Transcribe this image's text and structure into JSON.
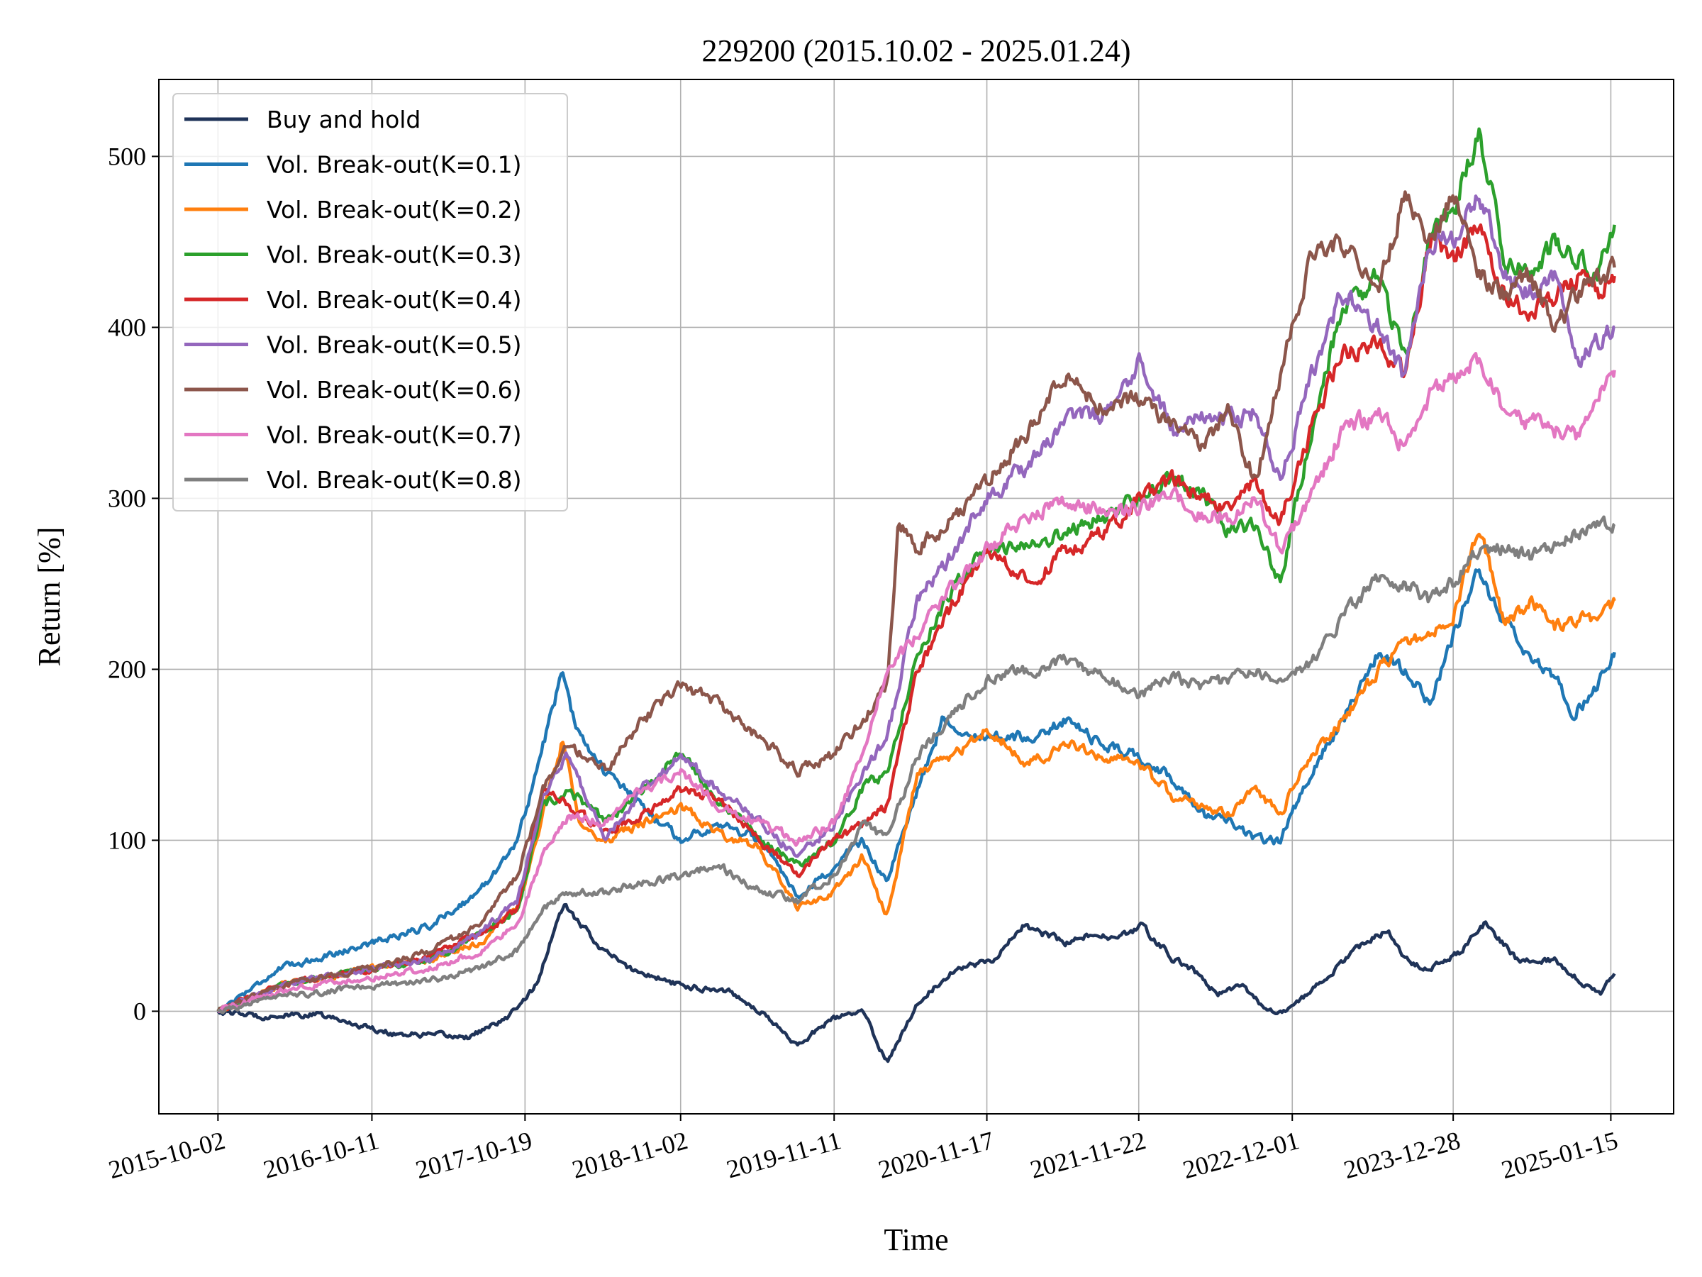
{
  "chart_data": {
    "type": "line",
    "title": "229200 (2015.10.02 - 2025.01.24)",
    "xlabel": "Time",
    "ylabel": "Return [%]",
    "x_start": "2015-10-02",
    "x_end": "2025-01-24",
    "xlim": [
      "2015-05-11",
      "2025-06-17"
    ],
    "ylim": [
      -60,
      545
    ],
    "x_ticks": [
      "2015-10-02",
      "2016-10-11",
      "2017-10-19",
      "2018-11-02",
      "2019-11-11",
      "2020-11-17",
      "2021-11-22",
      "2022-12-01",
      "2023-12-28",
      "2025-01-15"
    ],
    "y_ticks": [
      0,
      100,
      200,
      300,
      400,
      500
    ],
    "grid": true,
    "legend_position": "upper-left",
    "series": [
      {
        "name": "Buy and hold",
        "color": "#1f3358",
        "x": [
          "2015-10-02",
          "2016-01-15",
          "2016-06-01",
          "2016-12-01",
          "2017-06-01",
          "2017-09-01",
          "2017-11-15",
          "2018-01-20",
          "2018-05-01",
          "2018-07-01",
          "2018-11-02",
          "2019-03-01",
          "2019-05-15",
          "2019-08-15",
          "2019-11-01",
          "2020-01-20",
          "2020-03-19",
          "2020-06-01",
          "2020-09-01",
          "2020-12-01",
          "2021-02-15",
          "2021-06-01",
          "2021-08-01",
          "2021-10-01",
          "2021-12-01",
          "2022-02-15",
          "2022-04-01",
          "2022-06-01",
          "2022-08-01",
          "2022-10-01",
          "2022-11-15",
          "2023-02-01",
          "2023-05-01",
          "2023-07-20",
          "2023-09-01",
          "2023-11-01",
          "2024-01-15",
          "2024-03-15",
          "2024-06-01",
          "2024-09-01",
          "2024-11-15",
          "2024-12-20",
          "2025-01-24"
        ],
        "y": [
          0,
          -3,
          -2,
          -13,
          -15,
          -5,
          15,
          62,
          35,
          25,
          15,
          12,
          0,
          -20,
          -5,
          0,
          -30,
          5,
          25,
          30,
          50,
          40,
          45,
          42,
          50,
          30,
          25,
          10,
          15,
          0,
          0,
          15,
          35,
          48,
          30,
          25,
          35,
          52,
          30,
          30,
          15,
          10,
          22
        ]
      },
      {
        "name": "Vol. Break-out(K=0.1)",
        "color": "#1f77b4",
        "x": [
          "2015-10-02",
          "2016-03-01",
          "2016-10-11",
          "2017-03-01",
          "2017-07-01",
          "2017-10-01",
          "2017-11-15",
          "2018-01-20",
          "2018-02-15",
          "2018-05-01",
          "2018-08-01",
          "2018-11-02",
          "2019-02-01",
          "2019-05-15",
          "2019-08-15",
          "2019-11-11",
          "2020-01-20",
          "2020-03-19",
          "2020-06-01",
          "2020-08-01",
          "2020-11-17",
          "2021-03-01",
          "2021-06-01",
          "2021-09-01",
          "2021-11-22",
          "2022-02-15",
          "2022-05-01",
          "2022-07-01",
          "2022-09-01",
          "2022-11-01",
          "2023-01-15",
          "2023-04-01",
          "2023-07-01",
          "2023-09-01",
          "2023-11-01",
          "2023-12-28",
          "2024-03-01",
          "2024-04-01",
          "2024-06-15",
          "2024-09-01",
          "2024-10-15",
          "2024-12-01",
          "2025-01-24"
        ],
        "y": [
          0,
          25,
          40,
          50,
          70,
          100,
          140,
          200,
          170,
          140,
          120,
          100,
          110,
          100,
          65,
          85,
          100,
          75,
          130,
          170,
          160,
          160,
          170,
          155,
          150,
          135,
          115,
          110,
          100,
          100,
          140,
          170,
          210,
          200,
          180,
          220,
          260,
          240,
          210,
          195,
          175,
          185,
          210
        ]
      },
      {
        "name": "Vol. Break-out(K=0.2)",
        "color": "#ff7f0e",
        "x": [
          "2015-10-02",
          "2016-03-01",
          "2016-10-11",
          "2017-03-01",
          "2017-07-01",
          "2017-10-01",
          "2017-11-15",
          "2018-01-20",
          "2018-03-01",
          "2018-05-01",
          "2018-08-01",
          "2018-11-02",
          "2019-02-01",
          "2019-05-15",
          "2019-08-15",
          "2019-11-11",
          "2020-01-20",
          "2020-03-19",
          "2020-06-01",
          "2020-09-01",
          "2020-11-17",
          "2021-03-01",
          "2021-06-01",
          "2021-09-01",
          "2021-11-22",
          "2022-02-15",
          "2022-05-01",
          "2022-07-01",
          "2022-09-01",
          "2022-11-01",
          "2023-01-15",
          "2023-04-01",
          "2023-07-01",
          "2023-09-01",
          "2023-11-01",
          "2023-12-28",
          "2024-03-01",
          "2024-05-01",
          "2024-07-01",
          "2024-09-01",
          "2024-11-01",
          "2024-12-15",
          "2025-01-24"
        ],
        "y": [
          0,
          15,
          25,
          30,
          40,
          60,
          100,
          160,
          110,
          100,
          110,
          120,
          105,
          95,
          60,
          70,
          90,
          55,
          140,
          150,
          165,
          145,
          155,
          150,
          145,
          125,
          120,
          115,
          130,
          115,
          150,
          170,
          200,
          215,
          220,
          230,
          285,
          225,
          240,
          225,
          230,
          225,
          240
        ]
      },
      {
        "name": "Vol. Break-out(K=0.3)",
        "color": "#2ca02c",
        "x": [
          "2015-10-02",
          "2016-03-01",
          "2016-10-11",
          "2017-03-01",
          "2017-07-01",
          "2017-10-01",
          "2017-12-01",
          "2018-02-01",
          "2018-05-01",
          "2018-08-01",
          "2018-11-02",
          "2019-02-01",
          "2019-05-15",
          "2019-08-15",
          "2019-11-11",
          "2020-01-20",
          "2020-03-19",
          "2020-06-01",
          "2020-09-01",
          "2020-11-17",
          "2021-03-01",
          "2021-06-01",
          "2021-09-01",
          "2021-11-22",
          "2022-02-15",
          "2022-05-01",
          "2022-07-01",
          "2022-09-01",
          "2022-11-01",
          "2023-01-15",
          "2023-04-01",
          "2023-07-01",
          "2023-09-01",
          "2023-11-01",
          "2023-12-28",
          "2024-03-01",
          "2024-05-01",
          "2024-07-01",
          "2024-09-01",
          "2024-11-01",
          "2024-12-15",
          "2025-01-24"
        ],
        "y": [
          0,
          15,
          25,
          30,
          45,
          60,
          120,
          130,
          110,
          130,
          150,
          125,
          100,
          85,
          100,
          130,
          140,
          210,
          250,
          270,
          270,
          280,
          290,
          300,
          310,
          300,
          280,
          285,
          250,
          340,
          410,
          430,
          380,
          450,
          470,
          515,
          440,
          430,
          450,
          440,
          430,
          460
        ]
      },
      {
        "name": "Vol. Break-out(K=0.4)",
        "color": "#d62728",
        "x": [
          "2015-10-02",
          "2016-03-01",
          "2016-10-11",
          "2017-03-01",
          "2017-07-01",
          "2017-10-01",
          "2017-12-01",
          "2018-02-01",
          "2018-05-01",
          "2018-08-01",
          "2018-11-02",
          "2019-02-01",
          "2019-05-15",
          "2019-08-15",
          "2019-11-11",
          "2020-01-20",
          "2020-03-19",
          "2020-06-01",
          "2020-09-01",
          "2020-11-17",
          "2021-03-01",
          "2021-06-01",
          "2021-09-01",
          "2021-11-22",
          "2022-02-15",
          "2022-05-01",
          "2022-07-01",
          "2022-09-01",
          "2022-11-01",
          "2023-01-15",
          "2023-04-01",
          "2023-07-01",
          "2023-09-01",
          "2023-11-01",
          "2023-12-28",
          "2024-03-01",
          "2024-05-01",
          "2024-07-01",
          "2024-09-01",
          "2024-11-01",
          "2024-12-15",
          "2025-01-24"
        ],
        "y": [
          0,
          15,
          25,
          32,
          45,
          60,
          130,
          120,
          105,
          115,
          130,
          125,
          100,
          80,
          100,
          110,
          120,
          200,
          240,
          270,
          250,
          270,
          280,
          300,
          310,
          300,
          290,
          310,
          285,
          340,
          385,
          390,
          370,
          450,
          440,
          460,
          420,
          410,
          420,
          430,
          420,
          430
        ]
      },
      {
        "name": "Vol. Break-out(K=0.5)",
        "color": "#9467bd",
        "x": [
          "2015-10-02",
          "2016-03-01",
          "2016-10-11",
          "2017-03-01",
          "2017-07-01",
          "2017-10-01",
          "2017-12-01",
          "2018-02-01",
          "2018-05-01",
          "2018-08-01",
          "2018-11-02",
          "2019-02-01",
          "2019-05-15",
          "2019-08-15",
          "2019-11-11",
          "2020-01-20",
          "2020-03-19",
          "2020-06-01",
          "2020-09-01",
          "2020-11-17",
          "2021-03-01",
          "2021-06-01",
          "2021-09-01",
          "2021-11-22",
          "2022-02-15",
          "2022-05-01",
          "2022-07-01",
          "2022-09-01",
          "2022-11-01",
          "2023-01-15",
          "2023-04-01",
          "2023-07-01",
          "2023-09-01",
          "2023-11-01",
          "2023-12-28",
          "2024-03-01",
          "2024-05-01",
          "2024-07-01",
          "2024-09-01",
          "2024-11-01",
          "2024-12-15",
          "2025-01-24"
        ],
        "y": [
          0,
          15,
          25,
          30,
          45,
          65,
          125,
          150,
          100,
          130,
          150,
          130,
          110,
          90,
          110,
          140,
          160,
          240,
          270,
          300,
          320,
          345,
          350,
          380,
          340,
          350,
          345,
          350,
          310,
          370,
          420,
          400,
          370,
          450,
          450,
          480,
          430,
          420,
          430,
          380,
          390,
          400
        ]
      },
      {
        "name": "Vol. Break-out(K=0.6)",
        "color": "#8c564b",
        "x": [
          "2015-10-02",
          "2016-03-01",
          "2016-10-11",
          "2017-03-01",
          "2017-07-01",
          "2017-10-01",
          "2017-12-01",
          "2018-02-01",
          "2018-05-01",
          "2018-08-01",
          "2018-11-02",
          "2019-02-01",
          "2019-05-15",
          "2019-08-15",
          "2019-11-11",
          "2020-01-20",
          "2020-03-19",
          "2020-04-15",
          "2020-06-01",
          "2020-09-01",
          "2020-11-17",
          "2021-03-01",
          "2021-06-01",
          "2021-09-01",
          "2021-11-22",
          "2022-02-15",
          "2022-05-01",
          "2022-07-01",
          "2022-09-01",
          "2022-11-01",
          "2023-01-15",
          "2023-04-01",
          "2023-07-01",
          "2023-09-01",
          "2023-11-01",
          "2023-12-28",
          "2024-03-01",
          "2024-05-01",
          "2024-07-01",
          "2024-09-01",
          "2024-11-01",
          "2024-12-15",
          "2025-01-24"
        ],
        "y": [
          0,
          15,
          25,
          35,
          50,
          80,
          130,
          155,
          140,
          170,
          190,
          180,
          160,
          140,
          150,
          170,
          190,
          285,
          270,
          290,
          310,
          340,
          375,
          350,
          360,
          340,
          330,
          350,
          310,
          370,
          440,
          450,
          420,
          480,
          450,
          480,
          430,
          420,
          430,
          400,
          420,
          430,
          435
        ]
      },
      {
        "name": "Vol. Break-out(K=0.7)",
        "color": "#e377c2",
        "x": [
          "2015-10-02",
          "2016-03-01",
          "2016-10-11",
          "2017-03-01",
          "2017-07-01",
          "2017-10-01",
          "2017-12-01",
          "2018-02-01",
          "2018-05-01",
          "2018-08-01",
          "2018-11-02",
          "2019-02-01",
          "2019-05-15",
          "2019-08-15",
          "2019-11-11",
          "2020-01-20",
          "2020-03-19",
          "2020-06-01",
          "2020-09-01",
          "2020-11-17",
          "2021-03-01",
          "2021-06-01",
          "2021-09-01",
          "2021-11-22",
          "2022-02-15",
          "2022-05-01",
          "2022-07-01",
          "2022-09-01",
          "2022-11-01",
          "2023-01-15",
          "2023-04-01",
          "2023-07-01",
          "2023-09-01",
          "2023-11-01",
          "2023-12-28",
          "2024-03-01",
          "2024-05-01",
          "2024-07-01",
          "2024-09-01",
          "2024-11-01",
          "2024-12-15",
          "2025-01-24"
        ],
        "y": [
          0,
          12,
          20,
          25,
          35,
          50,
          90,
          115,
          110,
          130,
          140,
          120,
          110,
          100,
          110,
          150,
          200,
          220,
          250,
          270,
          290,
          300,
          290,
          295,
          300,
          290,
          290,
          300,
          270,
          300,
          340,
          350,
          330,
          360,
          370,
          380,
          350,
          345,
          340,
          335,
          360,
          375
        ]
      },
      {
        "name": "Vol. Break-out(K=0.8)",
        "color": "#7f7f7f",
        "x": [
          "2015-10-02",
          "2016-03-01",
          "2016-10-11",
          "2017-03-01",
          "2017-07-01",
          "2017-10-01",
          "2017-12-01",
          "2018-02-01",
          "2018-05-01",
          "2018-08-01",
          "2018-11-02",
          "2019-02-01",
          "2019-05-15",
          "2019-08-15",
          "2019-11-11",
          "2020-01-20",
          "2020-03-19",
          "2020-06-01",
          "2020-09-01",
          "2020-11-17",
          "2021-03-01",
          "2021-06-01",
          "2021-09-01",
          "2021-11-22",
          "2022-02-15",
          "2022-05-01",
          "2022-07-01",
          "2022-09-01",
          "2022-11-01",
          "2023-01-15",
          "2023-04-01",
          "2023-07-01",
          "2023-09-01",
          "2023-11-01",
          "2023-12-28",
          "2024-03-01",
          "2024-05-01",
          "2024-07-01",
          "2024-09-01",
          "2024-11-01",
          "2024-12-15",
          "2025-01-24"
        ],
        "y": [
          0,
          8,
          15,
          18,
          25,
          35,
          60,
          70,
          70,
          75,
          80,
          85,
          70,
          65,
          80,
          110,
          100,
          150,
          175,
          195,
          200,
          205,
          195,
          185,
          195,
          190,
          195,
          200,
          190,
          205,
          230,
          255,
          250,
          240,
          250,
          270,
          270,
          265,
          275,
          280,
          285,
          285
        ]
      }
    ]
  }
}
